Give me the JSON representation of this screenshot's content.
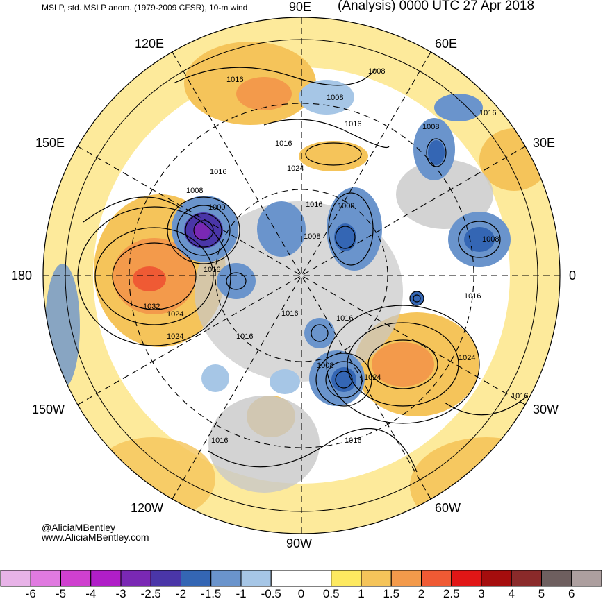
{
  "header": {
    "subtitle": "MSLP, std. MSLP anom. (1979-2009 CFSR), 10-m wind",
    "title": "(Analysis) 0000 UTC 27 Apr 2018"
  },
  "credits": {
    "handle": "@AliciaMBentley",
    "website": "www.AliciaMBentley.com"
  },
  "longitude_labels": {
    "e90": "90E",
    "e60": "60E",
    "e30": "30E",
    "zero": "0",
    "w30": "30W",
    "w60": "60W",
    "w90": "90W",
    "w120": "120W",
    "w150": "150W",
    "d180": "180",
    "e150": "150E",
    "e120": "120E"
  },
  "isobar_labels": [
    "1016",
    "1008",
    "1008",
    "1016",
    "1008",
    "1016",
    "1016",
    "1024",
    "1016",
    "1008",
    "1008",
    "1000",
    "1016",
    "1008",
    "1008",
    "1016",
    "1032",
    "1024",
    "1024",
    "1016",
    "1016",
    "1016",
    "1008",
    "1024",
    "1024",
    "1016",
    "1016",
    "1016",
    "1016"
  ],
  "colorbar": {
    "ticks": [
      "-6",
      "-5",
      "-4",
      "-3",
      "-2.5",
      "-2",
      "-1.5",
      "-1",
      "-0.5",
      "0",
      "0.5",
      "1",
      "1.5",
      "2",
      "2.5",
      "3",
      "4",
      "5",
      "6"
    ],
    "colors": [
      "#e8b3e8",
      "#e07ae0",
      "#cf40cf",
      "#b01ec8",
      "#7a28b4",
      "#4a36a8",
      "#3466b4",
      "#6a94cc",
      "#a6c6e6",
      "#ffffff",
      "#ffffff",
      "#fde960",
      "#f5c45a",
      "#f39a4b",
      "#ef5a34",
      "#e11616",
      "#a50d0d",
      "#8a2a2a",
      "#6e5f5f",
      "#ad9f9f"
    ]
  }
}
